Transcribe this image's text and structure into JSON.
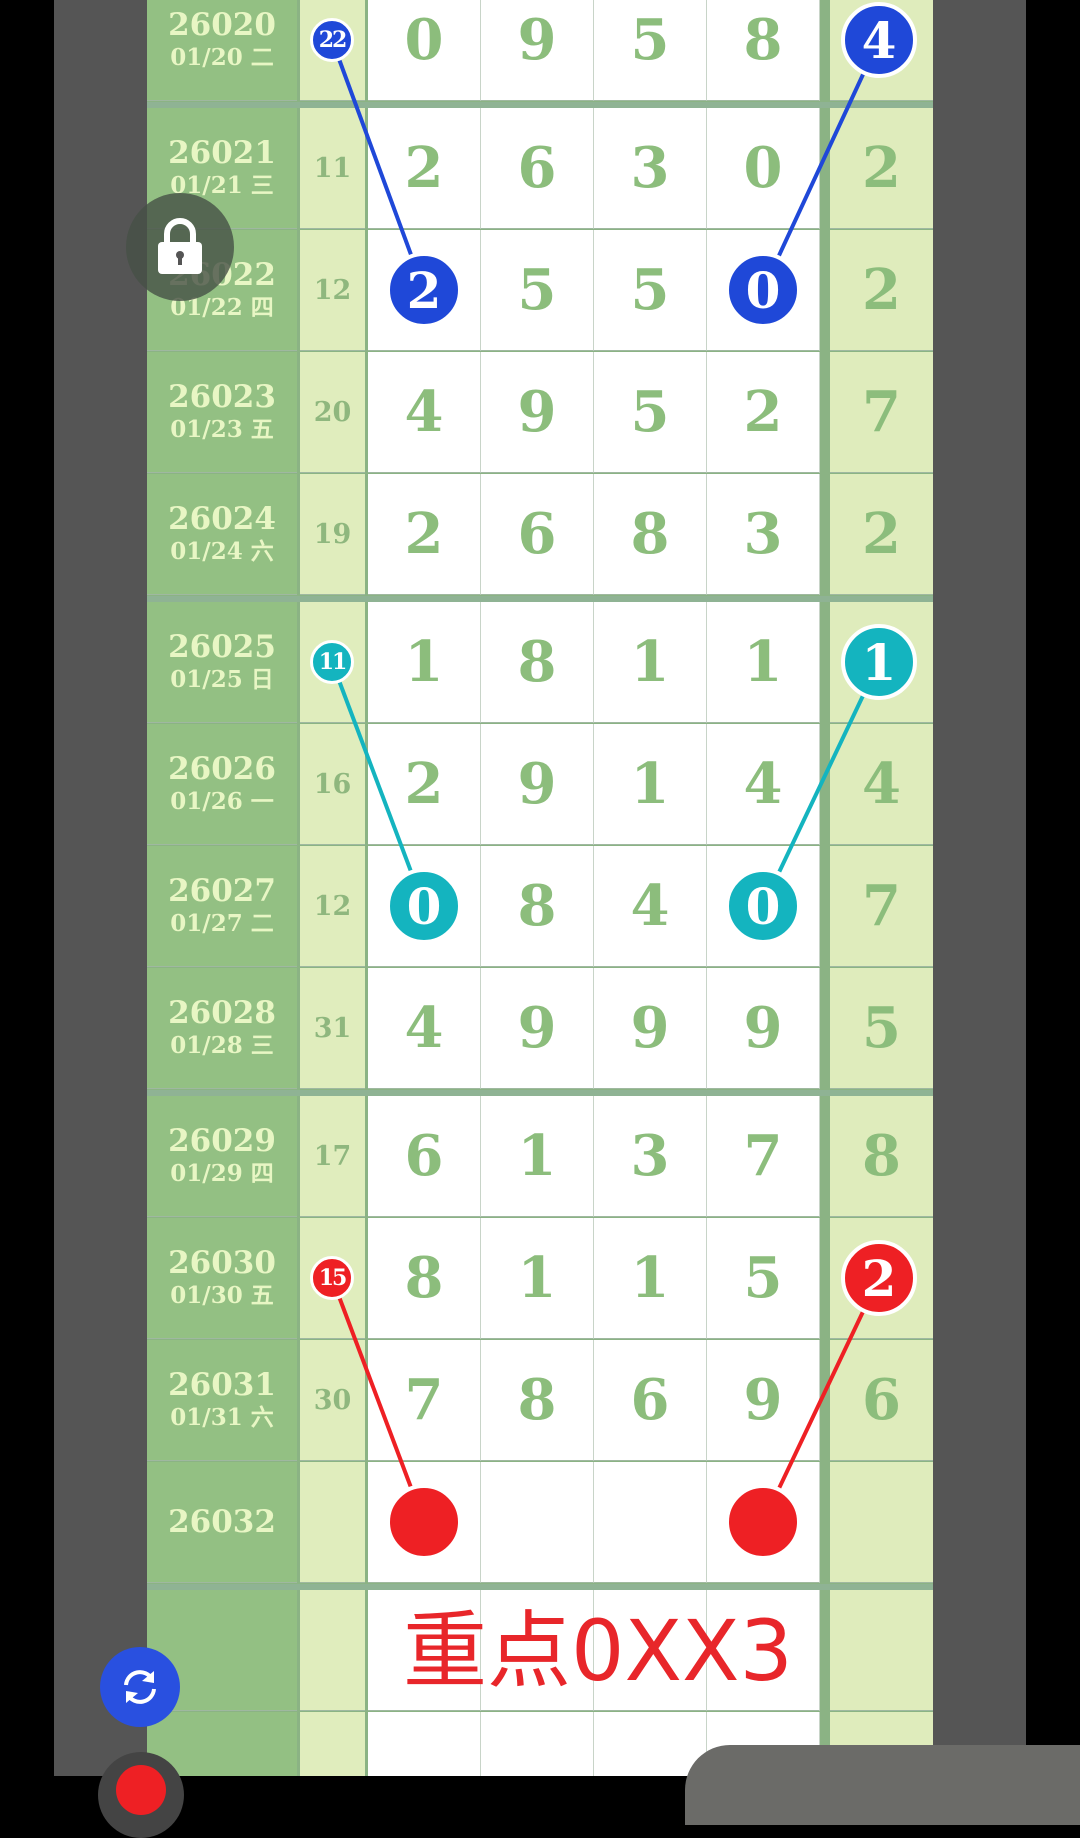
{
  "colors": {
    "blue": "#1f48d8",
    "cyan": "#14b4bf",
    "red": "#ee2024",
    "digit": "#8cbd7c"
  },
  "rows": [
    {
      "period": "26020",
      "date": "01/20 二",
      "small": "22",
      "digits": [
        "0",
        "9",
        "5",
        "8"
      ],
      "right": "4"
    },
    {
      "period": "26021",
      "date": "01/21 三",
      "small": "11",
      "digits": [
        "2",
        "6",
        "3",
        "0"
      ],
      "right": "2"
    },
    {
      "period": "26022",
      "date": "01/22 四",
      "small": "12",
      "digits": [
        "2",
        "5",
        "5",
        "0"
      ],
      "right": "2"
    },
    {
      "period": "26023",
      "date": "01/23 五",
      "small": "20",
      "digits": [
        "4",
        "9",
        "5",
        "2"
      ],
      "right": "7"
    },
    {
      "period": "26024",
      "date": "01/24 六",
      "small": "19",
      "digits": [
        "2",
        "6",
        "8",
        "3"
      ],
      "right": "2"
    },
    {
      "period": "26025",
      "date": "01/25 日",
      "small": "11",
      "digits": [
        "1",
        "8",
        "1",
        "1"
      ],
      "right": "1"
    },
    {
      "period": "26026",
      "date": "01/26 一",
      "small": "16",
      "digits": [
        "2",
        "9",
        "1",
        "4"
      ],
      "right": "4"
    },
    {
      "period": "26027",
      "date": "01/27 二",
      "small": "12",
      "digits": [
        "0",
        "8",
        "4",
        "0"
      ],
      "right": "7"
    },
    {
      "period": "26028",
      "date": "01/28 三",
      "small": "31",
      "digits": [
        "4",
        "9",
        "9",
        "9"
      ],
      "right": "5"
    },
    {
      "period": "26029",
      "date": "01/29 四",
      "small": "17",
      "digits": [
        "6",
        "1",
        "3",
        "7"
      ],
      "right": "8"
    },
    {
      "period": "26030",
      "date": "01/30 五",
      "small": "15",
      "digits": [
        "8",
        "1",
        "1",
        "5"
      ],
      "right": "2"
    },
    {
      "period": "26031",
      "date": "01/31 六",
      "small": "30",
      "digits": [
        "7",
        "8",
        "6",
        "9"
      ],
      "right": "6"
    },
    {
      "period": "26032",
      "date": "",
      "small": "",
      "digits": [
        "",
        "",
        "",
        ""
      ],
      "right": ""
    }
  ],
  "note": "重点0XX3",
  "highlights": [
    {
      "color": "blue",
      "points": [
        {
          "row": 0,
          "col": "small"
        },
        {
          "row": 2,
          "col": 0
        }
      ]
    },
    {
      "color": "blue",
      "points": [
        {
          "row": 0,
          "col": "right"
        },
        {
          "row": 2,
          "col": 3
        }
      ]
    },
    {
      "color": "cyan",
      "points": [
        {
          "row": 5,
          "col": "small"
        },
        {
          "row": 7,
          "col": 0
        }
      ]
    },
    {
      "color": "cyan",
      "points": [
        {
          "row": 5,
          "col": "right"
        },
        {
          "row": 7,
          "col": 3
        }
      ]
    },
    {
      "color": "red",
      "points": [
        {
          "row": 10,
          "col": "small"
        },
        {
          "row": 12,
          "col": 0
        }
      ]
    },
    {
      "color": "red",
      "points": [
        {
          "row": 10,
          "col": "right"
        },
        {
          "row": 12,
          "col": 3
        }
      ]
    }
  ],
  "icons": {
    "lock": "lock-icon",
    "refresh": "refresh-icon"
  }
}
